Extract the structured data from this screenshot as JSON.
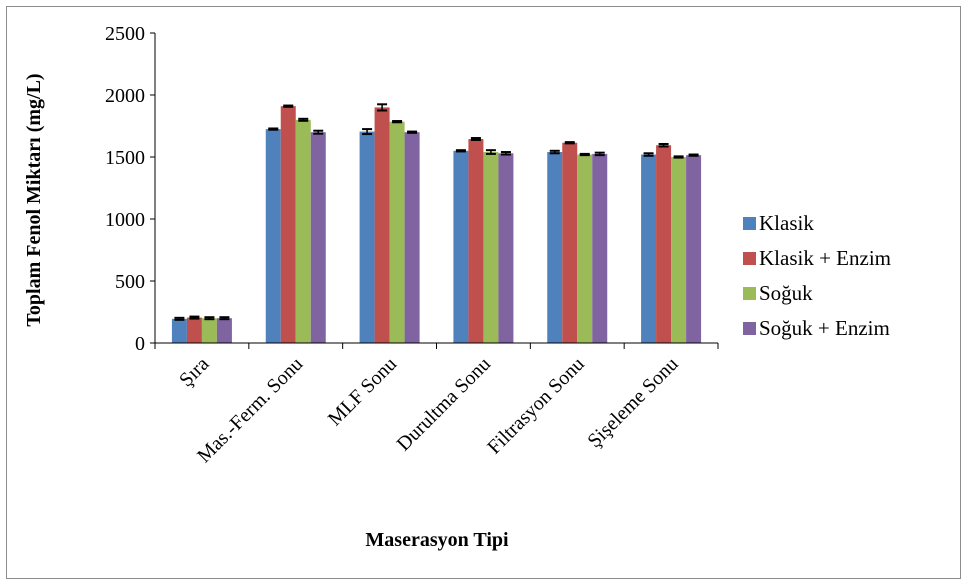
{
  "chart_data": {
    "type": "bar",
    "title": "",
    "xlabel": "Maserasyon Tipi",
    "ylabel": "Toplam Fenol Miktarı (mg/L)",
    "ylim": [
      0,
      2500
    ],
    "yticks": [
      "0",
      "500",
      "1000",
      "1500",
      "2000",
      "2500"
    ],
    "categories": [
      "Şıra",
      "Mas.-Ferm. Sonu",
      "MLF Sonu",
      "Durultma Sonu",
      "Filtrasyon Sonu",
      "Şişeleme Sonu"
    ],
    "series": [
      {
        "name": "Klasik",
        "color": "#4f81bd",
        "values": [
          195,
          1725,
          1705,
          1550,
          1540,
          1520
        ],
        "errors": [
          8,
          5,
          20,
          5,
          10,
          10
        ]
      },
      {
        "name": "Klasik + Enzim",
        "color": "#c0504d",
        "values": [
          205,
          1910,
          1900,
          1645,
          1615,
          1595
        ],
        "errors": [
          8,
          5,
          25,
          8,
          5,
          10
        ]
      },
      {
        "name": "Soğuk",
        "color": "#9bbb59",
        "values": [
          200,
          1800,
          1785,
          1540,
          1520,
          1500
        ],
        "errors": [
          8,
          8,
          5,
          15,
          5,
          5
        ]
      },
      {
        "name": "Soğuk + Enzim",
        "color": "#8064a2",
        "values": [
          200,
          1700,
          1700,
          1530,
          1525,
          1515
        ],
        "errors": [
          8,
          12,
          5,
          10,
          10,
          5
        ]
      }
    ],
    "grid": false,
    "legend_position": "right"
  }
}
